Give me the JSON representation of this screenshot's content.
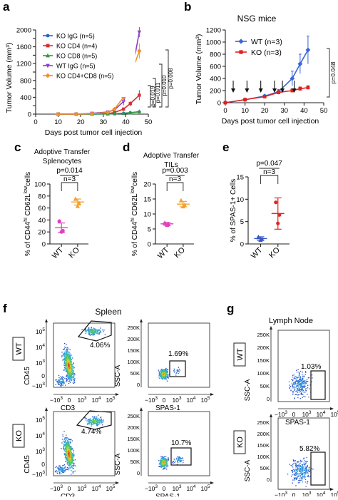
{
  "colors": {
    "ko_igg": "#2b5fc4",
    "ko_cd4": "#d62f2f",
    "ko_cd8": "#2f9a3a",
    "wt_igg": "#8b3fc8",
    "ko_cd4cd8": "#f0902a",
    "nsg_wt": "#3b64d6",
    "nsg_ko": "#e02020",
    "c_wt": "#e23fbf",
    "c_ko": "#f2a232",
    "e_wt": "#3956c9",
    "e_ko": "#e02525"
  },
  "panels": {
    "a": {
      "letter": "a"
    },
    "b": {
      "letter": "b",
      "title": "NSG mice"
    },
    "c": {
      "letter": "c",
      "title_line1": "Adoptive Transfer",
      "title_line2": "Splenocytes",
      "pvalue": "p=0.014",
      "n": "n=3"
    },
    "d": {
      "letter": "d",
      "title_line1": "Adoptive Transfer",
      "title_line2": "TILs",
      "pvalue": "p=0.003",
      "n": "n=3"
    },
    "e": {
      "letter": "e",
      "pvalue": "p=0.047",
      "n": "n=3"
    },
    "f": {
      "letter": "f",
      "title": "Spleen",
      "wt_gate1": "4.06%",
      "wt_gate2": "1.69%",
      "ko_gate1": "4.74%",
      "ko_gate2": "10.7%",
      "row_wt": "WT",
      "row_ko": "KO"
    },
    "g": {
      "letter": "g",
      "title": "Lymph Node",
      "wt_gate": "1.03%",
      "ko_gate": "5.82%",
      "row_wt": "WT",
      "row_ko": "KO"
    }
  },
  "flow_axes": {
    "cd45": "CD45",
    "cd3": "CD3",
    "ssca": "SSC-A",
    "spas1": "SPAS-1",
    "tick_minus": "−10",
    "tick_0": "0",
    "tick_10": "10",
    "exp3": "3",
    "exp4": "4",
    "exp5": "5",
    "ssc_ticks": [
      "250K",
      "200K",
      "150K",
      "100K",
      "50K",
      "0"
    ]
  },
  "chart_data": [
    {
      "type": "line",
      "panel": "a",
      "xlabel": "Days post tumor cell injection",
      "ylabel": "Tumor Volume (mm³)",
      "xlim": [
        0,
        50
      ],
      "ylim": [
        0,
        2000
      ],
      "xticks": [
        "0",
        "10",
        "20",
        "30",
        "40",
        "50"
      ],
      "yticks": [
        "0",
        "200",
        "400",
        "600",
        "800",
        "1000",
        "1200",
        "1400",
        "1600",
        "1800",
        "2000"
      ],
      "x": [
        10,
        18,
        25,
        32,
        35,
        39,
        42,
        46
      ],
      "series": [
        {
          "name": "KO IgG (n=5)",
          "values": [
            0,
            0,
            0,
            5,
            10,
            20,
            35,
            55
          ]
        },
        {
          "name": "KO CD4 (n=4)",
          "values": [
            0,
            0,
            5,
            15,
            40,
            120,
            250,
            450
          ]
        },
        {
          "name": "KO CD8 (n=5)",
          "values": [
            0,
            0,
            0,
            5,
            10,
            20,
            30,
            60
          ]
        },
        {
          "name": "WT IgG (n=5)",
          "values": [
            0,
            0,
            20,
            50,
            100,
            300,
            800,
            1950
          ]
        },
        {
          "name": "KO CD4+CD8 (n=5)",
          "values": [
            0,
            0,
            10,
            40,
            120,
            400,
            900,
            1500
          ]
        }
      ],
      "annotations": [
        "p=0.019",
        "p=0.011",
        "p=0.010",
        "p=0.008"
      ]
    },
    {
      "type": "line",
      "panel": "b",
      "title": "NSG mice",
      "xlabel": "Days post tumor cell injection",
      "ylabel": "Tumor Volume (mm³)",
      "xlim": [
        0,
        50
      ],
      "ylim": [
        0,
        1200
      ],
      "xticks": [
        "0",
        "10",
        "20",
        "30",
        "40",
        "50"
      ],
      "yticks": [
        "0",
        "200",
        "400",
        "600",
        "800",
        "1000",
        "1200"
      ],
      "x": [
        0,
        10,
        20,
        27,
        34,
        38,
        42
      ],
      "series": [
        {
          "name": "WT (n=3)",
          "values": [
            0,
            50,
            110,
            180,
            400,
            640,
            870
          ],
          "errors": [
            0,
            10,
            20,
            40,
            120,
            160,
            230
          ]
        },
        {
          "name": "KO (n=3)",
          "values": [
            0,
            50,
            100,
            170,
            200,
            230,
            250
          ],
          "errors": [
            0,
            10,
            20,
            30,
            30,
            30,
            30
          ]
        }
      ],
      "injection_days": [
        4,
        11,
        18,
        25,
        29,
        35
      ],
      "annotations": [
        "p=0.048"
      ]
    },
    {
      "type": "scatter",
      "panel": "c",
      "title": "Adoptive Transfer Splenocytes",
      "ylabel": "% of CD44 hi CD62L low cells",
      "ylim": [
        0,
        100
      ],
      "yticks": [
        "0",
        "20",
        "40",
        "60",
        "80",
        "100"
      ],
      "categories": [
        "WT",
        "KO"
      ],
      "means": [
        27,
        70
      ],
      "sems": [
        8,
        5
      ],
      "points": [
        [
          38,
          22,
          20
        ],
        [
          75,
          68,
          63
        ]
      ],
      "annotations": [
        "p=0.014",
        "n=3"
      ]
    },
    {
      "type": "scatter",
      "panel": "d",
      "title": "Adoptive Transfer TILs",
      "ylabel": "% of CD44 hi CD62L low cells",
      "ylim": [
        0,
        20
      ],
      "yticks": [
        "0",
        "5",
        "10",
        "15",
        "20"
      ],
      "categories": [
        "WT",
        "KO"
      ],
      "means": [
        6.7,
        13.3
      ],
      "sems": [
        0.5,
        0.9
      ],
      "points": [
        [
          7.0,
          6.5,
          6.3
        ],
        [
          14.5,
          13.0,
          12.5
        ]
      ],
      "annotations": [
        "p=0.003",
        "n=3"
      ]
    },
    {
      "type": "scatter",
      "panel": "e",
      "ylabel": "% of SPAS-1+ Cells",
      "ylim": [
        0,
        15
      ],
      "yticks": [
        "0",
        "5",
        "10",
        "15"
      ],
      "categories": [
        "WT",
        "KO"
      ],
      "means": [
        1.2,
        6.8
      ],
      "sems": [
        0.4,
        3.5
      ],
      "points": [
        [
          1.5,
          1.1,
          0.9
        ],
        [
          9.3,
          6.5,
          4.6
        ]
      ],
      "annotations": [
        "p=0.047",
        "n=3"
      ]
    }
  ]
}
